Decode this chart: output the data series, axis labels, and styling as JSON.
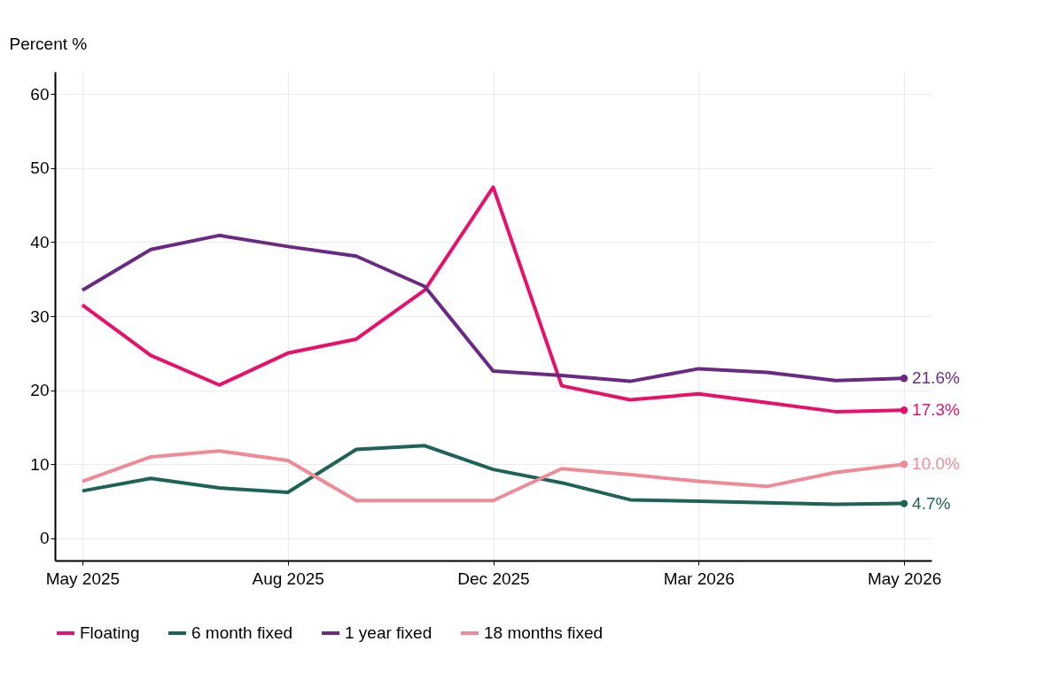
{
  "chart_data": {
    "type": "line",
    "ylabel": "Percent %",
    "categories": [
      "May 2025",
      null,
      null,
      "Aug 2025",
      null,
      null,
      "Dec 2025",
      null,
      null,
      "Mar 2026",
      null,
      null,
      "May 2026"
    ],
    "series": [
      {
        "name": "Floating",
        "color": "#e8106a",
        "values": [
          31.5,
          24.7,
          20.7,
          25.0,
          26.9,
          33.5,
          47.4,
          20.6,
          18.7,
          19.5,
          18.3,
          17.1,
          17.3
        ],
        "value_labels": [
          null,
          null,
          null,
          null,
          null,
          null,
          null,
          null,
          null,
          null,
          null,
          null,
          "17.3%"
        ]
      },
      {
        "name": "6 month fixed",
        "color": "#1e6358",
        "values": [
          6.4,
          8.1,
          6.8,
          6.2,
          12.0,
          12.5,
          9.3,
          7.5,
          5.2,
          5.0,
          4.8,
          4.6,
          4.7
        ],
        "value_labels": [
          null,
          null,
          null,
          null,
          null,
          null,
          null,
          null,
          null,
          null,
          null,
          null,
          "4.7%"
        ]
      },
      {
        "name": "1 year fixed",
        "color": "#6a2a84",
        "values": [
          33.5,
          39.0,
          40.9,
          39.4,
          38.1,
          34.0,
          22.6,
          22.0,
          21.2,
          22.9,
          22.4,
          21.3,
          21.6
        ],
        "value_labels": [
          null,
          null,
          null,
          null,
          null,
          null,
          null,
          null,
          null,
          null,
          null,
          null,
          "21.6%"
        ]
      },
      {
        "name": "18 months fixed",
        "color": "#f08a96",
        "values": [
          7.7,
          11.0,
          11.8,
          10.5,
          5.1,
          5.1,
          5.1,
          9.4,
          8.6,
          7.7,
          7.0,
          8.9,
          10.0
        ],
        "value_labels": [
          null,
          null,
          null,
          null,
          null,
          null,
          null,
          null,
          null,
          null,
          null,
          null,
          "10.0%"
        ]
      }
    ],
    "ylim": [
      -3,
      63
    ],
    "yticks": [
      0,
      10,
      20,
      30,
      40,
      50,
      60
    ],
    "grid": true,
    "legend": "bottom",
    "line_style": "solid"
  }
}
